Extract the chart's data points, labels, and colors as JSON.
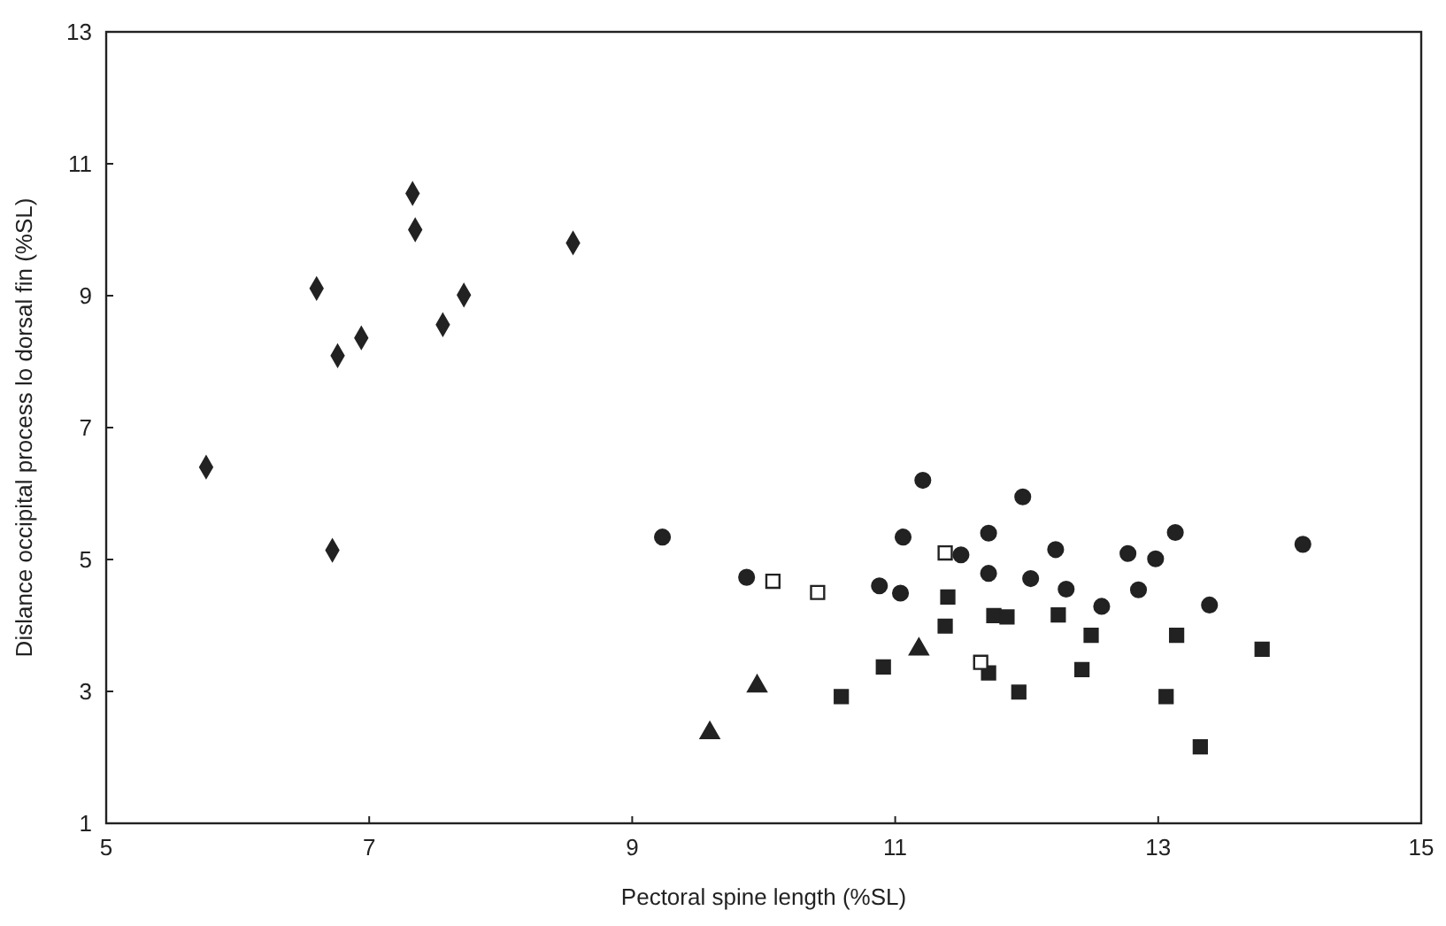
{
  "chart_data": {
    "type": "scatter",
    "xlabel": "Pectoral spine length (%SL)",
    "ylabel": "Dislance occipital process lo dorsal fin (%SL)",
    "xlim": [
      5,
      15
    ],
    "xticks": [
      5,
      7,
      9,
      11,
      13,
      15
    ],
    "ylim": [
      1,
      13
    ],
    "yticks": [
      1,
      3,
      5,
      7,
      9,
      11,
      13
    ],
    "grid": false,
    "series": [
      {
        "color": "#222222",
        "marker": "diamond",
        "x": [
          7.33,
          7.35,
          8.55,
          6.6,
          7.72,
          7.56,
          6.94,
          6.76,
          5.76,
          6.72
        ],
        "values": [
          10.55,
          10.0,
          9.8,
          9.11,
          9.01,
          8.56,
          8.36,
          8.09,
          6.4,
          5.14
        ]
      },
      {
        "color": "#222222",
        "marker": "circle",
        "x": [
          9.23,
          11.21,
          11.97,
          11.06,
          11.5,
          11.71,
          12.22,
          12.77,
          12.98,
          13.13,
          14.1,
          9.87,
          10.88,
          11.04,
          11.71,
          12.03,
          12.3,
          12.57,
          12.85,
          13.39
        ],
        "values": [
          5.34,
          6.2,
          5.95,
          5.34,
          5.07,
          5.4,
          5.15,
          5.09,
          5.01,
          5.41,
          5.23,
          4.73,
          4.6,
          4.49,
          4.79,
          4.71,
          4.55,
          4.29,
          4.54,
          4.31
        ]
      },
      {
        "color": "#222222",
        "marker": "square",
        "x": [
          11.71,
          11.4,
          11.38,
          11.75,
          11.85,
          12.24,
          12.49,
          13.14,
          13.79,
          10.91,
          10.59,
          11.94,
          12.42,
          13.06,
          13.32
        ],
        "values": [
          3.28,
          4.43,
          3.99,
          4.15,
          4.13,
          4.16,
          3.85,
          3.85,
          3.64,
          3.37,
          2.92,
          2.99,
          3.33,
          2.92,
          2.16
        ]
      },
      {
        "color": "#ffffff",
        "marker": "square",
        "x": [
          10.07,
          10.41,
          11.38,
          11.65
        ],
        "values": [
          4.67,
          4.5,
          5.1,
          3.44
        ]
      },
      {
        "color": "#222222",
        "marker": "triangle",
        "x": [
          11.18,
          9.95,
          9.59
        ],
        "values": [
          3.64,
          3.08,
          2.37
        ]
      }
    ]
  }
}
